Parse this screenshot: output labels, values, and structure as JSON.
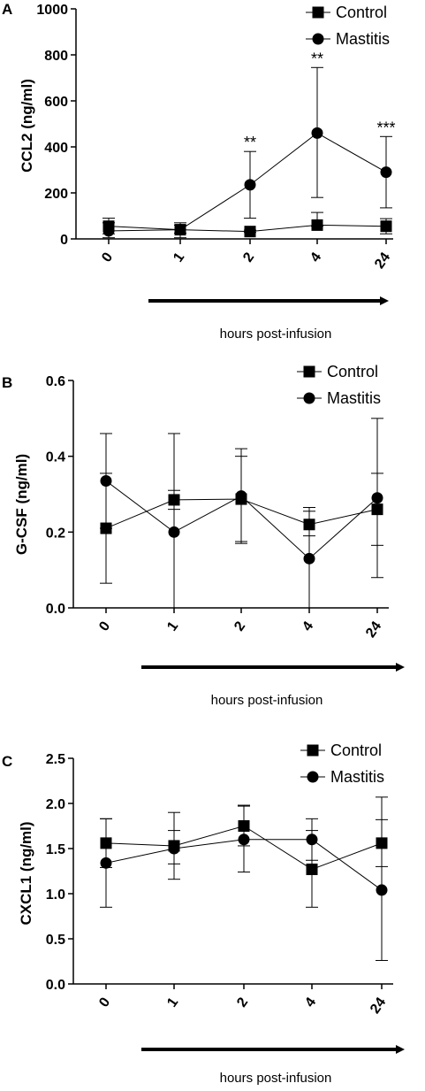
{
  "chart_data": [
    {
      "type": "line",
      "panel": "A",
      "ylabel": "CCL2 (ng/ml)",
      "xlabel": "hours post-infusion",
      "categories": [
        "0",
        "1",
        "2",
        "4",
        "24"
      ],
      "ylim": [
        0,
        1000
      ],
      "yticks": [
        "0",
        "200",
        "400",
        "600",
        "800",
        "1000"
      ],
      "legend_position": "top-right",
      "series": [
        {
          "name": "Control",
          "marker": "square",
          "values": [
            55,
            40,
            32,
            60,
            55
          ],
          "err_low": [
            22,
            25,
            28,
            55,
            22
          ],
          "err_high": [
            90,
            60,
            38,
            115,
            88
          ]
        },
        {
          "name": "Mastitis",
          "marker": "circle",
          "values": [
            35,
            40,
            235,
            460,
            290
          ],
          "err_low": [
            5,
            5,
            90,
            180,
            135
          ],
          "err_high": [
            70,
            70,
            380,
            745,
            445
          ]
        }
      ],
      "annotations": [
        {
          "category": "2",
          "text": "**"
        },
        {
          "category": "4",
          "text": "**"
        },
        {
          "category": "24",
          "text": "***"
        }
      ]
    },
    {
      "type": "line",
      "panel": "B",
      "ylabel": "G-CSF (ng/ml)",
      "xlabel": "hours post-infusion",
      "categories": [
        "0",
        "1",
        "2",
        "4",
        "24"
      ],
      "ylim": [
        0,
        0.6
      ],
      "yticks": [
        "0.0",
        "0.2",
        "0.4",
        "0.6"
      ],
      "legend_position": "top-right",
      "series": [
        {
          "name": "Control",
          "marker": "square",
          "values": [
            0.21,
            0.285,
            0.287,
            0.22,
            0.26
          ],
          "err_low": [
            0.065,
            0.26,
            0.17,
            0.19,
            0.165
          ],
          "err_high": [
            0.355,
            0.31,
            0.4,
            0.255,
            0.355
          ]
        },
        {
          "name": "Mastitis",
          "marker": "circle",
          "values": [
            0.335,
            0.2,
            0.295,
            0.13,
            0.29
          ],
          "err_low": [
            0.21,
            0.0,
            0.175,
            0.0,
            0.08
          ],
          "err_high": [
            0.46,
            0.46,
            0.42,
            0.265,
            0.5
          ]
        }
      ],
      "annotations": []
    },
    {
      "type": "line",
      "panel": "C",
      "ylabel": "CXCL1 (ng/ml)",
      "xlabel": "hours post-infusion",
      "categories": [
        "0",
        "1",
        "2",
        "4",
        "24"
      ],
      "ylim": [
        0,
        2.5
      ],
      "yticks": [
        "0.0",
        "0.5",
        "1.0",
        "1.5",
        "2.0",
        "2.5"
      ],
      "legend_position": "top-right",
      "series": [
        {
          "name": "Control",
          "marker": "square",
          "values": [
            1.56,
            1.53,
            1.75,
            1.27,
            1.56
          ],
          "err_low": [
            1.29,
            1.33,
            1.53,
            0.85,
            1.3
          ],
          "err_high": [
            1.83,
            1.7,
            1.98,
            1.7,
            1.82
          ]
        },
        {
          "name": "Mastitis",
          "marker": "circle",
          "values": [
            1.34,
            1.5,
            1.6,
            1.6,
            1.04
          ],
          "err_low": [
            0.85,
            1.16,
            1.24,
            1.37,
            0.26
          ],
          "err_high": [
            1.83,
            1.9,
            1.97,
            1.83,
            2.07
          ]
        }
      ],
      "annotations": []
    }
  ]
}
